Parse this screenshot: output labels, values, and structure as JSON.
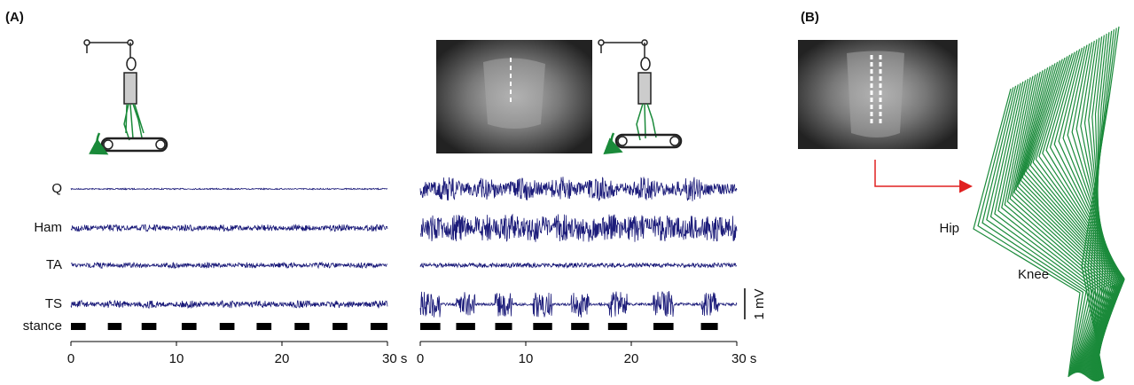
{
  "panel_a": {
    "label": "(A)",
    "muscles": [
      "Q",
      "Ham",
      "TA",
      "TS"
    ],
    "stance_label": "stance",
    "scale_label": "1 mV",
    "conditions": [
      {
        "xlim": [
          0,
          30
        ],
        "xticks": [
          0,
          10,
          20,
          {
            "value": 30,
            "label": "30 s"
          }
        ],
        "stance": [
          [
            0,
            1.4
          ],
          [
            3.5,
            4.8
          ],
          [
            6.7,
            8.1
          ],
          [
            10.5,
            11.9
          ],
          [
            14.1,
            15.5
          ],
          [
            17.6,
            19.0
          ],
          [
            21.2,
            22.6
          ],
          [
            24.8,
            26.2
          ],
          [
            28.4,
            30
          ]
        ]
      },
      {
        "xlim": [
          0,
          30
        ],
        "xticks": [
          0,
          10,
          20,
          {
            "value": 30,
            "label": "30 s"
          }
        ],
        "stance": [
          [
            0,
            1.9
          ],
          [
            3.4,
            5.2
          ],
          [
            7.1,
            8.7
          ],
          [
            10.7,
            12.5
          ],
          [
            14.3,
            16.0
          ],
          [
            17.8,
            19.6
          ],
          [
            22.1,
            24.0
          ],
          [
            26.6,
            28.2
          ]
        ]
      }
    ]
  },
  "panel_b": {
    "label": "(B)",
    "joints": [
      "Hip",
      "Knee"
    ]
  }
}
